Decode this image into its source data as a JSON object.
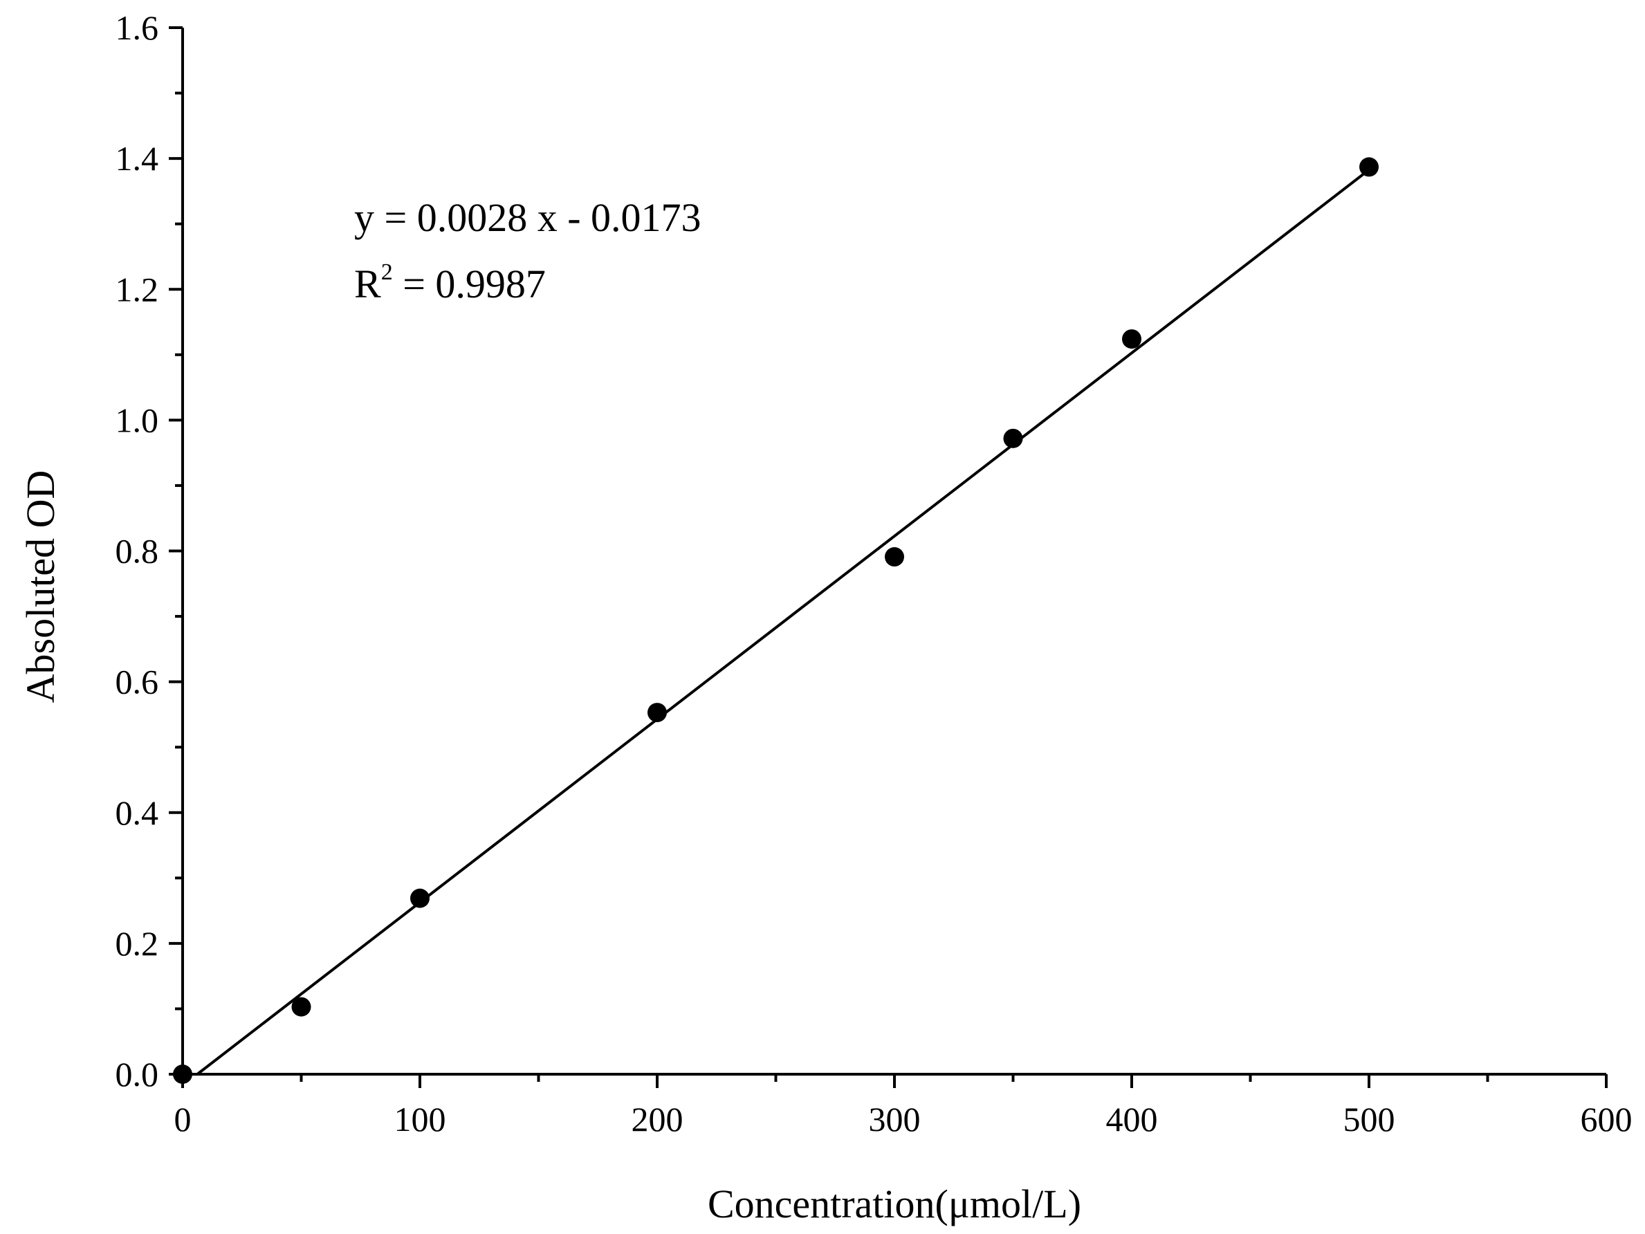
{
  "chart_data": {
    "type": "scatter",
    "title": "",
    "xlabel": "Concentration(μmol/L)",
    "ylabel": "Absoluted OD",
    "xlim": [
      0,
      600
    ],
    "ylim": [
      0,
      1.6
    ],
    "x_ticks": [
      "0",
      "100",
      "200",
      "300",
      "400",
      "500",
      "600"
    ],
    "y_ticks": [
      "0.0",
      "0.2",
      "0.4",
      "0.6",
      "0.8",
      "1.0",
      "1.2",
      "1.4",
      "1.6"
    ],
    "grid": false,
    "legend": "none",
    "marker_color": "#000000",
    "series": [
      {
        "x": [
          0,
          50,
          100,
          200,
          300,
          350,
          400,
          500
        ],
        "y": [
          0.0,
          0.103,
          0.269,
          0.553,
          0.791,
          0.972,
          1.124,
          1.387
        ]
      }
    ],
    "fit": {
      "type": "linear",
      "slope": 0.0028,
      "intercept": -0.0173,
      "x_range": [
        6.18,
        500
      ]
    },
    "annotations": {
      "equation": "y = 0.0028 x - 0.0173",
      "r2_prefix": "R",
      "r2_sup": "2",
      "r2_suffix": " = 0.9987"
    }
  }
}
